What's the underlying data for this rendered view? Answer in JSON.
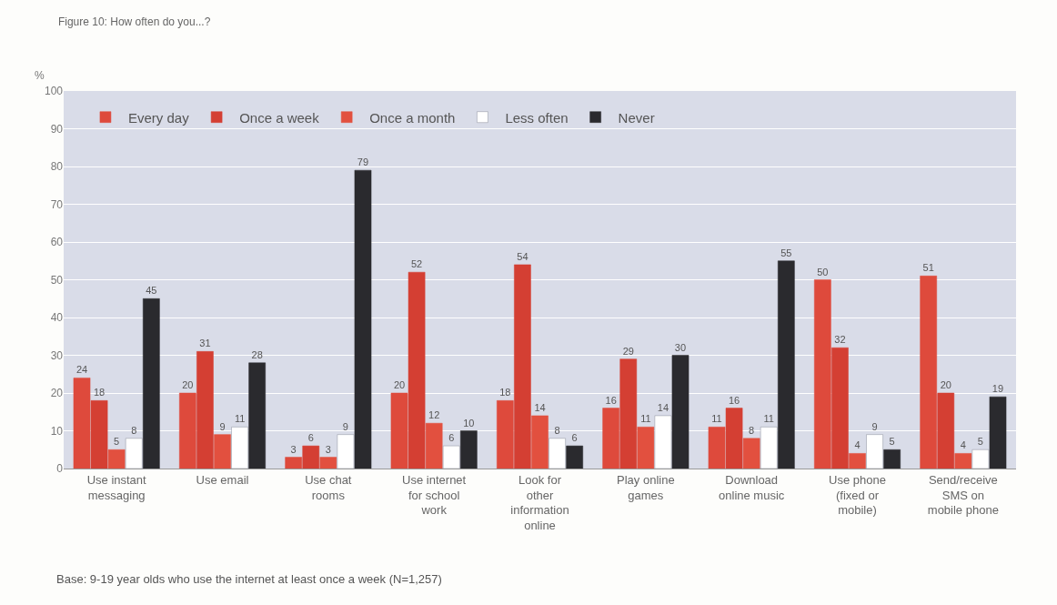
{
  "chart_data": {
    "type": "bar",
    "title": "Figure 10: How often do you...?",
    "ylabel": "%",
    "categories": [
      "Use instant messaging",
      "Use email",
      "Use chat rooms",
      "Use internet for school work",
      "Look for other information online",
      "Play online games",
      "Download online music",
      "Use phone (fixed or mobile)",
      "Send/receive SMS on mobile phone"
    ],
    "series": [
      {
        "name": "Every day",
        "color": "#de4a3c",
        "values": [
          24,
          20,
          3,
          20,
          18,
          16,
          11,
          50,
          51
        ]
      },
      {
        "name": "Once a week",
        "color": "#d43f33",
        "values": [
          18,
          31,
          6,
          52,
          54,
          29,
          16,
          32,
          20
        ]
      },
      {
        "name": "Once a month",
        "color": "#e2503f",
        "values": [
          5,
          9,
          3,
          12,
          14,
          11,
          8,
          4,
          4
        ]
      },
      {
        "name": "Less often",
        "color": "#ffffff",
        "values": [
          8,
          11,
          9,
          6,
          8,
          14,
          11,
          9,
          5
        ]
      },
      {
        "name": "Never",
        "color": "#2a2a2e",
        "values": [
          45,
          28,
          79,
          10,
          6,
          30,
          55,
          5,
          19
        ]
      }
    ],
    "ylim": [
      0,
      100
    ],
    "yticks": [
      0,
      10,
      20,
      30,
      40,
      50,
      60,
      70,
      80,
      90,
      100
    ],
    "grid": "y",
    "legend": "top left",
    "data_labels": true,
    "annotations": [
      "Base: 9-19 year olds who use the internet at least once a week (N=1,257)"
    ]
  }
}
